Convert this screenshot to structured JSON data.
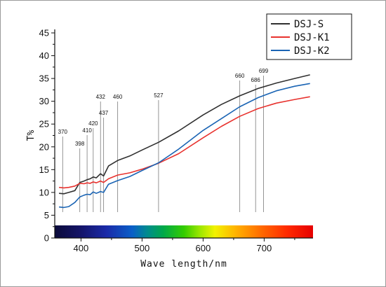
{
  "chart_data": {
    "type": "line",
    "title": "",
    "xlabel": "Wave length/nm",
    "ylabel": "T%",
    "xlim": [
      357,
      780
    ],
    "ylim": [
      0,
      45
    ],
    "x_ticks": [
      400,
      500,
      600,
      700
    ],
    "y_ticks": [
      0,
      5,
      10,
      15,
      20,
      25,
      30,
      35,
      40,
      45
    ],
    "legend_position": "top-right",
    "spectrum_strip": true,
    "annotation_lines": [
      370,
      398,
      410,
      420,
      432,
      437,
      460,
      527,
      660,
      686,
      699
    ],
    "series": [
      {
        "name": "DSJ-S",
        "color": "#303030",
        "x": [
          364,
          372,
          380,
          390,
          398,
          405,
          410,
          415,
          420,
          425,
          432,
          437,
          445,
          460,
          480,
          500,
          527,
          560,
          600,
          630,
          660,
          690,
          720,
          750,
          775
        ],
        "y": [
          9.8,
          9.7,
          10.0,
          10.4,
          12.2,
          12.5,
          12.8,
          13.0,
          13.4,
          13.2,
          14.1,
          13.6,
          15.8,
          17.0,
          18.0,
          19.3,
          21.0,
          23.5,
          27.0,
          29.3,
          31.2,
          32.8,
          34.0,
          35.0,
          35.8
        ]
      },
      {
        "name": "DSJ-K1",
        "color": "#e8322e",
        "x": [
          364,
          372,
          380,
          390,
          398,
          405,
          410,
          415,
          420,
          425,
          432,
          437,
          445,
          460,
          480,
          500,
          527,
          560,
          600,
          630,
          660,
          690,
          720,
          750,
          775
        ],
        "y": [
          11.1,
          11.0,
          11.1,
          11.4,
          12.0,
          11.9,
          12.1,
          12.0,
          12.3,
          12.1,
          12.5,
          12.2,
          13.0,
          13.8,
          14.3,
          15.1,
          16.4,
          18.5,
          22.0,
          24.5,
          26.7,
          28.4,
          29.6,
          30.4,
          31.0
        ]
      },
      {
        "name": "DSJ-K2",
        "color": "#1a64b4",
        "x": [
          364,
          372,
          380,
          390,
          398,
          405,
          410,
          415,
          420,
          425,
          432,
          437,
          445,
          460,
          480,
          500,
          527,
          560,
          600,
          630,
          660,
          690,
          720,
          750,
          775
        ],
        "y": [
          6.8,
          6.7,
          6.9,
          7.8,
          9.0,
          9.4,
          9.6,
          9.5,
          10.1,
          9.8,
          10.2,
          10.0,
          11.8,
          12.6,
          13.5,
          14.8,
          16.5,
          19.5,
          23.6,
          26.2,
          28.8,
          30.8,
          32.3,
          33.3,
          33.9
        ]
      }
    ]
  }
}
